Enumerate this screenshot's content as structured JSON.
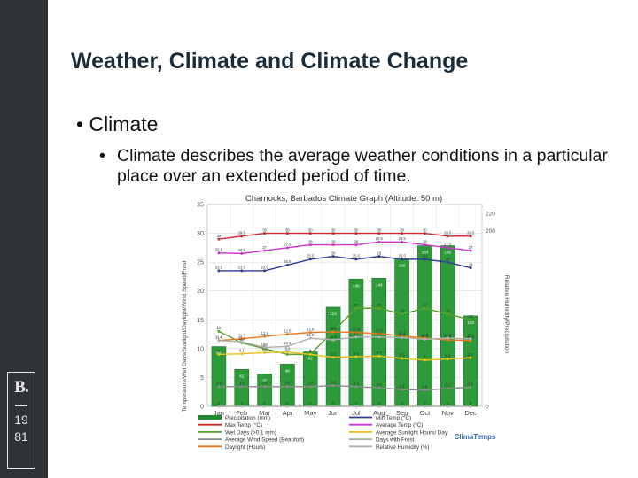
{
  "slide": {
    "title": "Weather, Climate and Climate Change",
    "bullet1": "Climate",
    "bullet2": "Climate describes the average weather conditions in a particular place over an extended period of time."
  },
  "logo": {
    "letter": "B.",
    "year_top": "19",
    "year_bottom": "81"
  },
  "chart_data": {
    "type": "bar",
    "title": "Charnocks, Barbados Climate Graph (Altitude: 50 m)",
    "ylabel_left": "Temperature/Wet Days/Sunlight/Daylight/Wind Speed/Frost",
    "ylabel_right": "Relative Humidity/Precipitation",
    "ylim_left": [
      0,
      35
    ],
    "ylim_right": [
      0,
      230
    ],
    "left_ticks": [
      0,
      5,
      10,
      15,
      20,
      25,
      30,
      35
    ],
    "right_ticks": [
      0,
      20,
      40,
      60,
      80,
      100,
      120,
      140,
      160,
      180,
      200,
      220
    ],
    "right_tick_labels": [
      "0",
      "",
      "",
      "",
      "",
      "",
      "",
      "",
      "",
      "",
      "200",
      "220"
    ],
    "categories": [
      "Jan",
      "Feb",
      "Mar",
      "Apr",
      "May",
      "Jun",
      "Jul",
      "Aug",
      "Sep",
      "Oct",
      "Nov",
      "Dec"
    ],
    "bars": {
      "name": "Precipitation (mm)",
      "values": [
        68,
        42,
        37,
        48,
        62,
        113,
        145,
        146,
        168,
        183,
        183,
        103
      ]
    },
    "series": [
      {
        "name": "Max Temp (°C)",
        "color": "#c8282b",
        "values": [
          29,
          29.5,
          30,
          30,
          30,
          30,
          30,
          30,
          30,
          30,
          29.5,
          29.5
        ]
      },
      {
        "name": "Average Temp (°C)",
        "color": "#cc33cc",
        "values": [
          26.6,
          26.5,
          27,
          27.5,
          28,
          28,
          28,
          28.5,
          28.5,
          28,
          27.5,
          27
        ]
      },
      {
        "name": "Min Temp (°C)",
        "color": "#2e3f8f",
        "values": [
          23.5,
          23.5,
          23.5,
          24.5,
          25.5,
          26,
          25.5,
          26,
          25.5,
          25.5,
          25,
          24
        ]
      },
      {
        "name": "Wet Days (>0.1 mm)",
        "color": "#5aa02c",
        "values": [
          13,
          11,
          10,
          9,
          9,
          13,
          17,
          17,
          16,
          17,
          16,
          15
        ]
      },
      {
        "name": "Average Sunlight Hours/ Day",
        "color": "#e8c020",
        "values": [
          9,
          9.1,
          9.3,
          9.4,
          9,
          8.5,
          8.6,
          8.7,
          8.3,
          8,
          8.2,
          8.4
        ]
      },
      {
        "name": "Daylight (Hours)",
        "color": "#e87820",
        "values": [
          11.4,
          11.7,
          12.1,
          12.5,
          12.8,
          12.9,
          12.8,
          12.6,
          12.2,
          11.8,
          11.5,
          11.4
        ]
      },
      {
        "name": "Average Wind Speed (Beaufort)",
        "color": "#8a8a8a",
        "values": [
          3.4,
          3.4,
          3.4,
          3.4,
          3.4,
          3.6,
          3.4,
          3.2,
          2.9,
          2.8,
          3.1,
          3.3
        ]
      },
      {
        "name": "Relative Humidity (%)",
        "color": "#b0b0b0",
        "values": [
          11.4,
          11.2,
          10.2,
          10.4,
          11.8,
          11.5,
          12.0,
          12.0,
          11.9,
          11.6,
          11.8,
          11.7
        ]
      },
      {
        "name": "Days with Frost",
        "color": "#aaaaaa",
        "values": [
          0,
          0,
          0,
          0,
          0,
          0,
          0,
          0,
          0,
          0,
          0,
          0
        ]
      }
    ],
    "legend": [
      {
        "name": "Precipitation (mm)",
        "color": "#1f8a2e",
        "kind": "bar"
      },
      {
        "name": "Min Temp (°C)",
        "color": "#2e3f8f",
        "kind": "line"
      },
      {
        "name": "Max Temp (°C)",
        "color": "#c8282b",
        "kind": "line"
      },
      {
        "name": "Average Temp (°C)",
        "color": "#cc33cc",
        "kind": "line"
      },
      {
        "name": "Wet Days (>0.1 mm)",
        "color": "#5aa02c",
        "kind": "line"
      },
      {
        "name": "Average Sunlight Hours/ Day",
        "color": "#e8c020",
        "kind": "line"
      },
      {
        "name": "Average Wind Speed (Beaufort)",
        "color": "#8a8a8a",
        "kind": "line"
      },
      {
        "name": "Days with Frost",
        "color": "#aaaaaa",
        "kind": "line"
      },
      {
        "name": "Daylight (Hours)",
        "color": "#e87820",
        "kind": "line"
      },
      {
        "name": "Relative Humidity (%)",
        "color": "#b0b0b0",
        "kind": "line"
      }
    ],
    "brand": "ClimaTemps",
    "legend_position": "bottom"
  }
}
